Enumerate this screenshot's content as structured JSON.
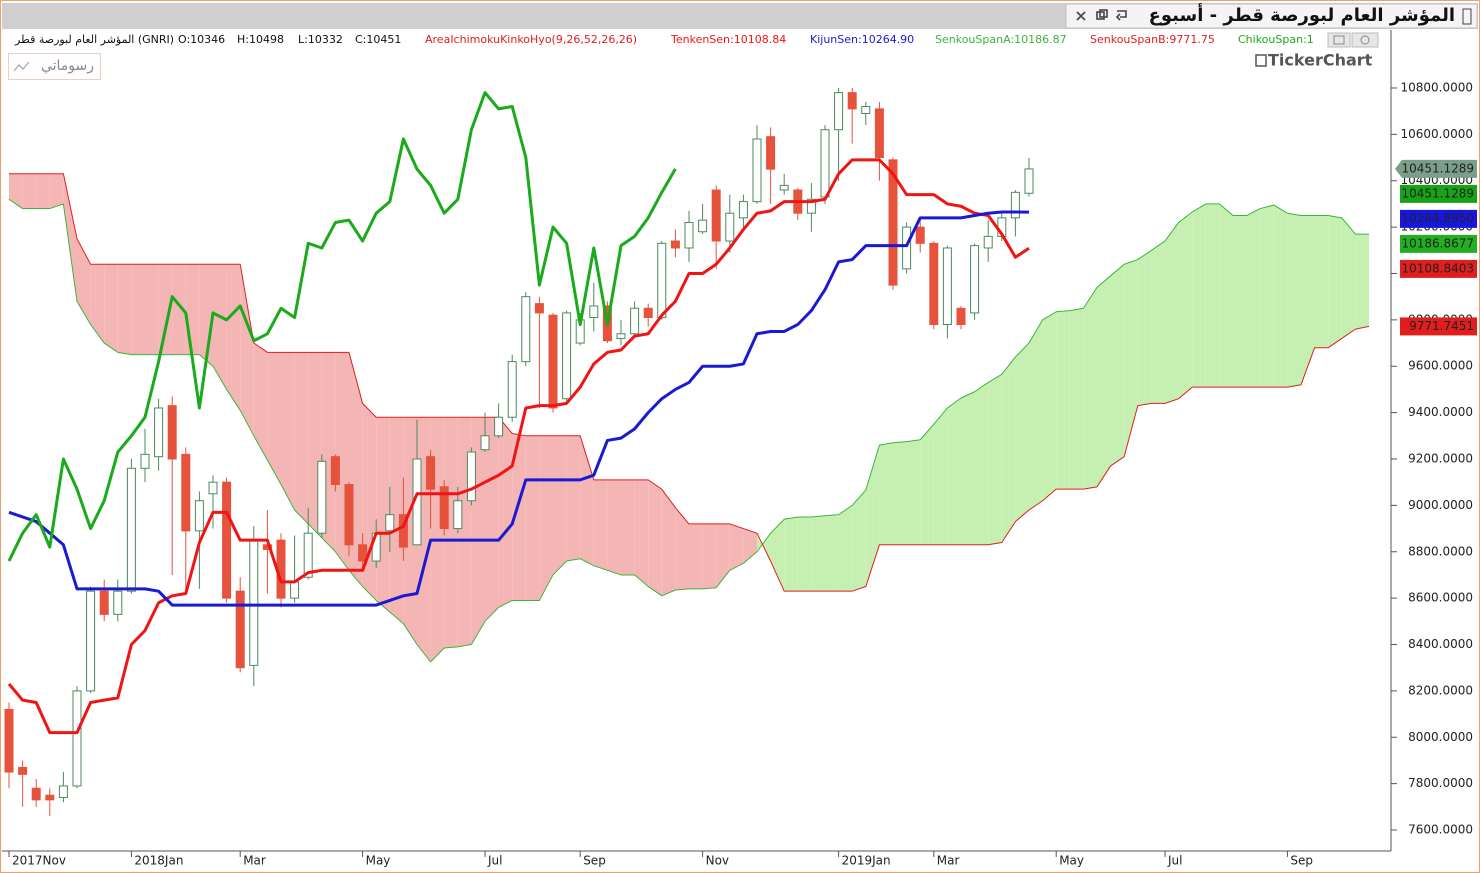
{
  "window": {
    "title": "المؤشر العام لبورصة قطر - أسبوع",
    "button": "رسوماتي",
    "logo": "TickerChart"
  },
  "chart_data": {
    "type": "candlestick",
    "info": {
      "symbol": "المؤشر العام لبورصة قطر (GNRI)",
      "ohlc": [
        "O:10346",
        "H:10498",
        "L:10332",
        "C:10451"
      ],
      "indicator": "AreaIchimokuKinkoHyo(9,26,52,26,26)"
    },
    "categories": [
      "2017Nov",
      null,
      null,
      null,
      null,
      null,
      null,
      null,
      null,
      "2018Jan",
      null,
      null,
      null,
      null,
      null,
      null,
      null,
      "Mar",
      null,
      null,
      null,
      null,
      null,
      null,
      null,
      null,
      "May",
      null,
      null,
      null,
      null,
      null,
      null,
      null,
      null,
      "Jul",
      null,
      null,
      null,
      null,
      null,
      null,
      "Sep",
      null,
      null,
      null,
      null,
      null,
      null,
      null,
      null,
      "Nov",
      null,
      null,
      null,
      null,
      null,
      null,
      null,
      null,
      null,
      "2019Jan",
      null,
      null,
      null,
      null,
      null,
      null,
      "Mar",
      null,
      null,
      null,
      null,
      null,
      null,
      null,
      null,
      "May",
      null,
      null,
      null,
      null,
      null,
      null,
      null,
      "Jul",
      null,
      null,
      null,
      null,
      null,
      null,
      null,
      null,
      "Sep",
      null,
      null,
      null,
      null,
      null,
      null
    ],
    "open": [
      8120,
      7870,
      7780,
      7750,
      7740,
      7790,
      8200,
      8630,
      8530,
      8630,
      9160,
      9210,
      9430,
      9220,
      8890,
      9050,
      9100,
      8630,
      8310,
      8830,
      8850,
      8600,
      8690,
      8880,
      9210,
      9090,
      8830,
      8760,
      8890,
      8960,
      8830,
      9210,
      9080,
      8900,
      9020,
      9240,
      9300,
      9380,
      9620,
      9870,
      9820,
      9460,
      9700,
      9810,
      9860,
      9720,
      9740,
      9850,
      9810,
      10140,
      10110,
      10180,
      10360,
      10140,
      10240,
      10310,
      10590,
      10360,
      10360,
      10260,
      10330,
      10620,
      10780,
      10690,
      10710,
      10490,
      10020,
      10200,
      10130,
      9780,
      9850,
      9830,
      10110,
      10160,
      10240,
      10346,
      null,
      null,
      null,
      null,
      null,
      null,
      null,
      null,
      null,
      null,
      null,
      null,
      null,
      null,
      null,
      null,
      null,
      null,
      null,
      null,
      null,
      null,
      null,
      null,
      null
    ],
    "high": [
      8150,
      7900,
      7820,
      7780,
      7850,
      8220,
      8650,
      8680,
      8680,
      9200,
      9330,
      9460,
      9470,
      9250,
      9060,
      9130,
      9120,
      8690,
      8910,
      8980,
      8880,
      8870,
      8990,
      9220,
      9220,
      9100,
      8880,
      8940,
      9080,
      9120,
      9370,
      9240,
      9110,
      9080,
      9250,
      9400,
      9440,
      9650,
      9920,
      9900,
      9830,
      9840,
      9830,
      9960,
      9880,
      9800,
      9880,
      9870,
      10140,
      10190,
      10270,
      10300,
      10380,
      10340,
      10340,
      10640,
      10630,
      10430,
      10370,
      10390,
      10640,
      10800,
      10800,
      10740,
      10740,
      10500,
      10220,
      10230,
      10140,
      10120,
      9860,
      10130,
      10230,
      10270,
      10360,
      10498,
      null,
      null,
      null,
      null,
      null,
      null,
      null,
      null,
      null,
      null,
      null,
      null,
      null,
      null,
      null,
      null,
      null,
      null,
      null,
      null,
      null,
      null,
      null,
      null,
      null
    ],
    "low": [
      7780,
      7700,
      7700,
      7660,
      7720,
      7780,
      8190,
      8500,
      8500,
      8620,
      9100,
      9150,
      8700,
      8620,
      8640,
      8900,
      8580,
      8280,
      8220,
      8620,
      8560,
      8580,
      8680,
      8860,
      9060,
      8780,
      8740,
      8730,
      8800,
      8760,
      8840,
      8900,
      8870,
      8880,
      9000,
      9230,
      9290,
      9360,
      9600,
      9420,
      9400,
      9450,
      9690,
      9750,
      9700,
      9690,
      9730,
      9770,
      9800,
      10070,
      10050,
      10170,
      10020,
      10090,
      10200,
      10300,
      10300,
      10340,
      10230,
      10180,
      10300,
      10400,
      10560,
      10640,
      10400,
      9930,
      10000,
      10090,
      9760,
      9720,
      9760,
      9800,
      10050,
      10140,
      10160,
      10332,
      null,
      null,
      null,
      null,
      null,
      null,
      null,
      null,
      null,
      null,
      null,
      null,
      null,
      null,
      null,
      null,
      null,
      null,
      null,
      null,
      null,
      null,
      null,
      null,
      null
    ],
    "close": [
      7850,
      7840,
      7730,
      7730,
      7790,
      8200,
      8630,
      8530,
      8630,
      9160,
      9220,
      9420,
      9200,
      8890,
      9020,
      9100,
      8600,
      8300,
      8850,
      8810,
      8600,
      8670,
      8880,
      9190,
      9090,
      8830,
      8760,
      8880,
      8960,
      8820,
      9200,
      9070,
      8900,
      9020,
      9230,
      9300,
      9380,
      9620,
      9900,
      9830,
      9420,
      9830,
      9800,
      9860,
      9710,
      9740,
      9850,
      9810,
      10130,
      10110,
      10220,
      10230,
      10140,
      10260,
      10310,
      10580,
      10450,
      10380,
      10260,
      10320,
      10620,
      10780,
      10710,
      10720,
      10500,
      9950,
      10200,
      10130,
      9780,
      10110,
      9780,
      10120,
      10160,
      10240,
      10350,
      10451,
      null,
      null,
      null,
      null,
      null,
      null,
      null,
      null,
      null,
      null,
      null,
      null,
      null,
      null,
      null,
      null,
      null,
      null,
      null,
      null,
      null,
      null,
      null,
      null,
      null
    ],
    "candle_colors": {
      "up": "#ffffff",
      "up_stroke": "#4b8a5e",
      "down": "#e5533d"
    },
    "cloud_colors": {
      "up": "#c6f0b2",
      "down": "#f4b6b4"
    },
    "series": [
      {
        "name": "TenkenSen:10108.84",
        "color": "#f01414",
        "values": [
          8230,
          8160,
          8150,
          8020,
          8020,
          8020,
          8150,
          8160,
          8170,
          8400,
          8460,
          8580,
          8610,
          8620,
          8840,
          8970,
          8970,
          8850,
          8850,
          8850,
          8670,
          8670,
          8710,
          8720,
          8720,
          8720,
          8720,
          8880,
          8880,
          8910,
          9050,
          9050,
          9050,
          9050,
          9070,
          9100,
          9130,
          9170,
          9420,
          9430,
          9430,
          9440,
          9510,
          9610,
          9660,
          9670,
          9730,
          9740,
          9820,
          9880,
          10000,
          10000,
          10040,
          10110,
          10190,
          10260,
          10270,
          10310,
          10310,
          10310,
          10320,
          10430,
          10490,
          10490,
          10490,
          10430,
          10340,
          10340,
          10340,
          10300,
          10290,
          10260,
          10250,
          10170,
          10070,
          10108.84,
          null,
          null,
          null,
          null,
          null,
          null,
          null,
          null,
          null,
          null,
          null,
          null,
          null,
          null,
          null,
          null,
          null,
          null,
          null,
          null,
          null,
          null,
          null,
          null,
          null
        ]
      },
      {
        "name": "KijunSen:10264.90",
        "color": "#1a1ad2",
        "values": [
          8970,
          8950,
          8930,
          8880,
          8830,
          8640,
          8640,
          8640,
          8640,
          8640,
          8640,
          8630,
          8570,
          8570,
          8570,
          8570,
          8570,
          8570,
          8570,
          8570,
          8570,
          8570,
          8570,
          8570,
          8570,
          8570,
          8570,
          8570,
          8590,
          8610,
          8620,
          8850,
          8850,
          8850,
          8850,
          8850,
          8850,
          8920,
          9110,
          9110,
          9110,
          9110,
          9110,
          9130,
          9280,
          9290,
          9330,
          9400,
          9460,
          9500,
          9530,
          9600,
          9600,
          9600,
          9610,
          9740,
          9750,
          9750,
          9780,
          9840,
          9930,
          10050,
          10060,
          10120,
          10120,
          10120,
          10120,
          10240,
          10240,
          10240,
          10240,
          10250,
          10260,
          10265,
          10265,
          10264.895,
          null,
          null,
          null,
          null,
          null,
          null,
          null,
          null,
          null,
          null,
          null,
          null,
          null,
          null,
          null,
          null,
          null,
          null,
          null,
          null,
          null,
          null,
          null,
          null,
          null
        ]
      },
      {
        "name": "SenkouSpanA:10186.87",
        "color": "#3cb43c",
        "values": [
          10320,
          10280,
          10280,
          10280,
          10300,
          9880,
          9780,
          9700,
          9660,
          9650,
          9650,
          9650,
          9650,
          9650,
          9650,
          9600,
          9500,
          9410,
          9300,
          9195,
          9090,
          8980,
          8920,
          8860,
          8800,
          8720,
          8650,
          8590,
          8540,
          8490,
          8400,
          8325,
          8385,
          8390,
          8400,
          8500,
          8560,
          8590,
          8590,
          8590,
          8700,
          8760,
          8770,
          8740,
          8720,
          8700,
          8700,
          8650,
          8610,
          8635,
          8640,
          8640,
          8645,
          8720,
          8750,
          8800,
          8880,
          8940,
          8950,
          8950,
          8955,
          8960,
          9000,
          9066,
          9260,
          9270,
          9275,
          9283,
          9350,
          9420,
          9463,
          9490,
          9530,
          9565,
          9640,
          9700,
          9800,
          9835,
          9840,
          9850,
          9940,
          9990,
          10040,
          10060,
          10100,
          10140,
          10220,
          10265,
          10300,
          10300,
          10250,
          10250,
          10280,
          10295,
          10260,
          10250,
          10250,
          10250,
          10240,
          10170,
          10170
        ]
      },
      {
        "name": "SenkouSpanB:9771.75",
        "color": "#e01e1e",
        "values": [
          10430,
          10430,
          10430,
          10430,
          10430,
          10150,
          10040,
          10040,
          10040,
          10040,
          10040,
          10040,
          10040,
          10040,
          10040,
          10040,
          10040,
          10040,
          9700,
          9660,
          9660,
          9660,
          9660,
          9660,
          9660,
          9660,
          9440,
          9380,
          9380,
          9380,
          9380,
          9380,
          9380,
          9380,
          9380,
          9380,
          9380,
          9310,
          9300,
          9300,
          9300,
          9300,
          9300,
          9110,
          9110,
          9110,
          9110,
          9110,
          9070,
          8990,
          8920,
          8920,
          8920,
          8920,
          8900,
          8880,
          8760,
          8630,
          8630,
          8630,
          8630,
          8630,
          8630,
          8650,
          8830,
          8830,
          8830,
          8830,
          8830,
          8830,
          8830,
          8830,
          8830,
          8840,
          8930,
          8980,
          9020,
          9070,
          9070,
          9070,
          9080,
          9170,
          9210,
          9430,
          9440,
          9440,
          9460,
          9510,
          9510,
          9510,
          9510,
          9510,
          9510,
          9510,
          9510,
          9520,
          9680,
          9680,
          9720,
          9760,
          9771.75
        ]
      },
      {
        "name": "ChikouSpan:1",
        "color": "#1aaa1a",
        "values": [
          8760,
          8880,
          8960,
          8820,
          9200,
          9070,
          8900,
          9020,
          9230,
          9300,
          9380,
          9620,
          9900,
          9830,
          9420,
          9830,
          9800,
          9860,
          9710,
          9740,
          9850,
          9810,
          10130,
          10110,
          10220,
          10230,
          10140,
          10260,
          10310,
          10580,
          10450,
          10380,
          10260,
          10320,
          10620,
          10780,
          10710,
          10720,
          10500,
          9950,
          10200,
          10130,
          9780,
          10110,
          9780,
          10120,
          10160,
          10240,
          10350,
          10451,
          null,
          null,
          null,
          null,
          null,
          null,
          null,
          null,
          null,
          null,
          null,
          null,
          null,
          null,
          null,
          null,
          null,
          null,
          null,
          null,
          null,
          null,
          null,
          null,
          null,
          null,
          null,
          null,
          null,
          null,
          null,
          null,
          null,
          null,
          null,
          null,
          null,
          null,
          null,
          null,
          null,
          null,
          null,
          null,
          null,
          null,
          null,
          null,
          null,
          null,
          null
        ]
      }
    ],
    "ylim": [
      7500,
      10950
    ],
    "yticks": [
      {
        "value": 7600,
        "label": "7600.0000"
      },
      {
        "value": 7800,
        "label": "7800.0000"
      },
      {
        "value": 8000,
        "label": "8000.0000"
      },
      {
        "value": 8200,
        "label": "8200.0000"
      },
      {
        "value": 8400,
        "label": "8400.0000"
      },
      {
        "value": 8600,
        "label": "8600.0000"
      },
      {
        "value": 8800,
        "label": "8800.0000"
      },
      {
        "value": 9000,
        "label": "9000.0000"
      },
      {
        "value": 9200,
        "label": "9200.0000"
      },
      {
        "value": 9400,
        "label": "9400.0000"
      },
      {
        "value": 9600,
        "label": "9600.0000"
      },
      {
        "value": 9800,
        "label": "9800.0000"
      },
      {
        "value": 10000,
        "label": "10000.0000"
      },
      {
        "value": 10200,
        "label": "10200.0000"
      },
      {
        "value": 10400,
        "label": "10400.0000"
      },
      {
        "value": 10600,
        "label": "10600.0000"
      },
      {
        "value": 10800,
        "label": "10800.0000"
      }
    ],
    "price_labels": [
      {
        "value": 10451.1289,
        "label": "10451.1289",
        "color": "#7a9e88"
      },
      {
        "value": 10451.1289,
        "label": "10451.1289",
        "color": "#16a316"
      },
      {
        "value": 10264.895,
        "label": "10264.8950",
        "color": "#1616e0"
      },
      {
        "value": 10186.8677,
        "label": "10186.8677",
        "color": "#22b022"
      },
      {
        "value": 10108.8403,
        "label": "10108.8403",
        "color": "#e01e1e"
      },
      {
        "value": 9771.7451,
        "label": "9771.7451",
        "color": "#e01e1e"
      }
    ]
  }
}
